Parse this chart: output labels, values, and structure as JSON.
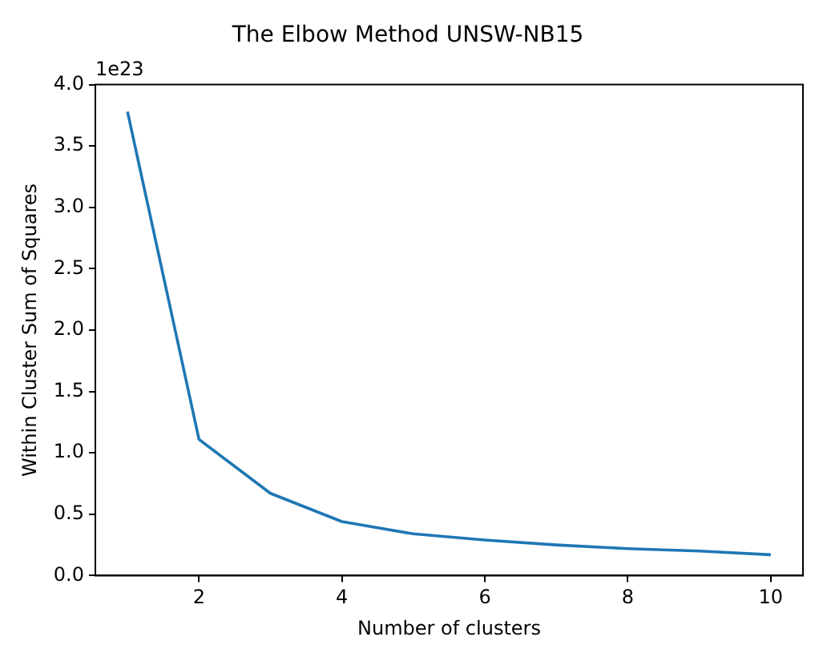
{
  "chart_data": {
    "type": "line",
    "title": "The Elbow Method UNSW-NB15",
    "xlabel": "Number of clusters",
    "ylabel": "Within Cluster Sum of Squares",
    "x": [
      1,
      2,
      3,
      4,
      5,
      6,
      7,
      8,
      9,
      10
    ],
    "series": [
      {
        "color": "#1f77b4",
        "values": [
          3.78,
          1.11,
          0.67,
          0.44,
          0.34,
          0.29,
          0.25,
          0.22,
          0.2,
          0.17
        ]
      }
    ],
    "xlim": [
      0.55,
      10.45
    ],
    "xticks": [
      2,
      4,
      6,
      8,
      10
    ],
    "ylim": [
      0,
      4
    ],
    "yticks": [
      {
        "value": 0,
        "label": "0.0"
      },
      {
        "value": 0.5,
        "label": "0.5"
      },
      {
        "value": 1,
        "label": "1.0"
      },
      {
        "value": 1.5,
        "label": "1.5"
      },
      {
        "value": 2,
        "label": "2.0"
      },
      {
        "value": 2.5,
        "label": "2.5"
      },
      {
        "value": 3,
        "label": "3.0"
      },
      {
        "value": 3.5,
        "label": "3.5"
      },
      {
        "value": 4,
        "label": "4.0"
      }
    ],
    "annotations": [
      "1e23"
    ],
    "grid": false,
    "legend": false,
    "marker": "none",
    "line_style": "solid"
  }
}
